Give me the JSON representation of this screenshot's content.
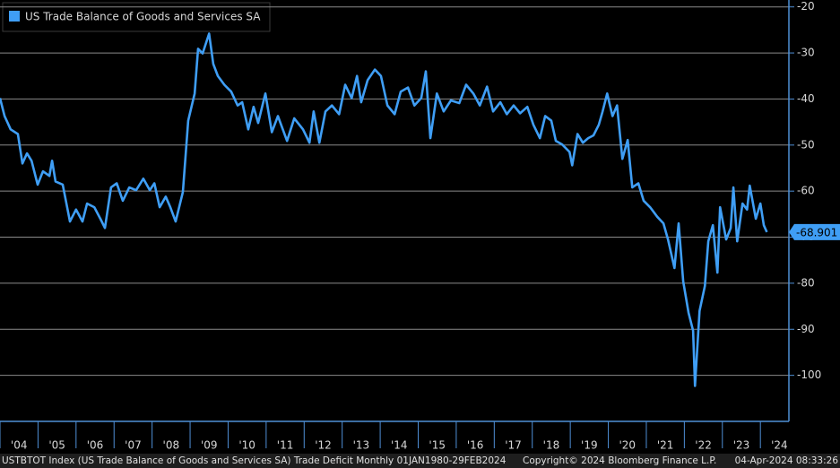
{
  "chart_data": {
    "type": "line",
    "legend": "US Trade Balance of Goods and Services SA",
    "footer": {
      "left": "USTBTOT Index (US Trade Balance of Goods and Services SA) Trade Deficit  Monthly 01JAN1980-29FEB2024",
      "middle": "Copyright© 2024 Bloomberg Finance L.P.",
      "right": "04-Apr-2024 08:33:26"
    },
    "x": [
      2004.0,
      2004.12,
      2004.28,
      2004.47,
      2004.59,
      2004.71,
      2004.83,
      2004.99,
      2005.13,
      2005.3,
      2005.37,
      2005.46,
      2005.65,
      2005.84,
      2006.0,
      2006.17,
      2006.29,
      2006.48,
      2006.64,
      2006.76,
      2006.92,
      2007.07,
      2007.23,
      2007.4,
      2007.58,
      2007.77,
      2007.94,
      2008.06,
      2008.2,
      2008.36,
      2008.48,
      2008.62,
      2008.81,
      2008.95,
      2009.12,
      2009.21,
      2009.33,
      2009.5,
      2009.61,
      2009.73,
      2009.9,
      2010.08,
      2010.25,
      2010.37,
      2010.53,
      2010.67,
      2010.79,
      2010.98,
      2011.15,
      2011.31,
      2011.55,
      2011.74,
      2011.97,
      2012.14,
      2012.25,
      2012.4,
      2012.56,
      2012.73,
      2012.92,
      2013.08,
      2013.25,
      2013.39,
      2013.5,
      2013.67,
      2013.86,
      2014.02,
      2014.19,
      2014.38,
      2014.54,
      2014.73,
      2014.9,
      2015.08,
      2015.2,
      2015.32,
      2015.49,
      2015.67,
      2015.86,
      2016.08,
      2016.26,
      2016.45,
      2016.62,
      2016.81,
      2016.97,
      2017.16,
      2017.33,
      2017.51,
      2017.68,
      2017.87,
      2018.03,
      2018.2,
      2018.34,
      2018.5,
      2018.62,
      2018.79,
      2018.98,
      2019.05,
      2019.19,
      2019.33,
      2019.47,
      2019.61,
      2019.75,
      2019.85,
      2019.97,
      2020.11,
      2020.23,
      2020.37,
      2020.51,
      2020.63,
      2020.79,
      2020.93,
      2021.1,
      2021.29,
      2021.45,
      2021.57,
      2021.74,
      2021.85,
      2021.97,
      2022.11,
      2022.23,
      2022.28,
      2022.4,
      2022.54,
      2022.63,
      2022.75,
      2022.87,
      2022.94,
      2023.1,
      2023.22,
      2023.29,
      2023.39,
      2023.53,
      2023.65,
      2023.72,
      2023.88,
      2024.0,
      2024.09,
      2024.17
    ],
    "series": [
      {
        "name": "US Trade Balance of Goods and Services SA",
        "color": "#3f9ef5",
        "values": [
          -39.8,
          -43.7,
          -46.6,
          -47.6,
          -54,
          -51.8,
          -53.4,
          -58.6,
          -55.7,
          -56.7,
          -53.4,
          -57.9,
          -58.6,
          -66.6,
          -64,
          -66.6,
          -62.7,
          -63.5,
          -66,
          -68,
          -59.2,
          -58.3,
          -62.1,
          -59.2,
          -59.8,
          -57.3,
          -59.8,
          -58.3,
          -63.5,
          -61.2,
          -63.5,
          -66.6,
          -60.2,
          -44.7,
          -38.8,
          -29.1,
          -30.1,
          -25.8,
          -32.4,
          -35,
          -36.9,
          -38.4,
          -41.4,
          -40.7,
          -46.6,
          -41.7,
          -45.2,
          -38.8,
          -47.2,
          -43.7,
          -49.1,
          -44.2,
          -46.6,
          -49.5,
          -42.7,
          -49.5,
          -42.7,
          -41.4,
          -43.3,
          -36.9,
          -39.8,
          -35,
          -40.7,
          -35.9,
          -33.6,
          -35,
          -41.4,
          -43.3,
          -38.4,
          -37.5,
          -41.4,
          -39.8,
          -34,
          -48.5,
          -38.8,
          -42.7,
          -40.3,
          -40.9,
          -36.9,
          -38.8,
          -41.4,
          -37.3,
          -42.7,
          -40.7,
          -43.3,
          -41.4,
          -43.1,
          -41.7,
          -45.6,
          -48.5,
          -43.7,
          -44.7,
          -49.1,
          -49.9,
          -51.5,
          -54.4,
          -47.6,
          -49.5,
          -48.5,
          -47.9,
          -45.6,
          -42.7,
          -38.8,
          -43.7,
          -41.4,
          -53,
          -48.9,
          -59.2,
          -58.3,
          -62.1,
          -63.5,
          -65.6,
          -67,
          -70.5,
          -76.7,
          -67,
          -79.6,
          -86.4,
          -90.3,
          -102.3,
          -86,
          -80.6,
          -70.9,
          -67.4,
          -77.7,
          -63.5,
          -70.5,
          -68,
          -59.2,
          -70.9,
          -62.7,
          -64,
          -58.8,
          -66,
          -62.7,
          -67.4,
          -68.901
        ]
      }
    ],
    "xlim": [
      2004,
      2024.75
    ],
    "xticks": [
      {
        "value": 2004,
        "label": "'04"
      },
      {
        "value": 2005,
        "label": "'05"
      },
      {
        "value": 2006,
        "label": "'06"
      },
      {
        "value": 2007,
        "label": "'07"
      },
      {
        "value": 2008,
        "label": "'08"
      },
      {
        "value": 2009,
        "label": "'09"
      },
      {
        "value": 2010,
        "label": "'10"
      },
      {
        "value": 2011,
        "label": "'11"
      },
      {
        "value": 2012,
        "label": "'12"
      },
      {
        "value": 2013,
        "label": "'13"
      },
      {
        "value": 2014,
        "label": "'14"
      },
      {
        "value": 2015,
        "label": "'15"
      },
      {
        "value": 2016,
        "label": "'16"
      },
      {
        "value": 2017,
        "label": "'17"
      },
      {
        "value": 2018,
        "label": "'18"
      },
      {
        "value": 2019,
        "label": "'19"
      },
      {
        "value": 2020,
        "label": "'20"
      },
      {
        "value": 2021,
        "label": "'21"
      },
      {
        "value": 2022,
        "label": "'22"
      },
      {
        "value": 2023,
        "label": "'23"
      },
      {
        "value": 2024,
        "label": "'24"
      }
    ],
    "ylim": [
      -110,
      -18.5
    ],
    "yticks": [
      -20,
      -30,
      -40,
      -50,
      -60,
      -70,
      -80,
      -90,
      -100
    ],
    "grid": true
  }
}
